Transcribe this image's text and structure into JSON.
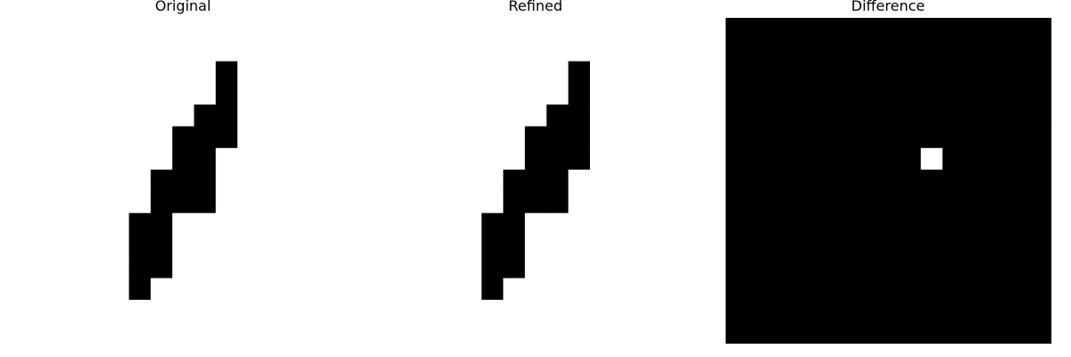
{
  "chart_data": {
    "type": "heatmap",
    "colormap": "gray",
    "rows": 15,
    "cols": 15,
    "value_range": [
      0,
      1
    ],
    "axes_visible": false,
    "panels": [
      {
        "title": "Original",
        "grid": [
          [
            1,
            1,
            1,
            1,
            1,
            1,
            1,
            1,
            1,
            1,
            1,
            1,
            1,
            1,
            1
          ],
          [
            1,
            1,
            1,
            1,
            1,
            1,
            1,
            1,
            1,
            1,
            1,
            1,
            1,
            1,
            1
          ],
          [
            1,
            1,
            1,
            1,
            1,
            1,
            1,
            1,
            1,
            0,
            1,
            1,
            1,
            1,
            1
          ],
          [
            1,
            1,
            1,
            1,
            1,
            1,
            1,
            1,
            1,
            0,
            1,
            1,
            1,
            1,
            1
          ],
          [
            1,
            1,
            1,
            1,
            1,
            1,
            1,
            1,
            0,
            0,
            1,
            1,
            1,
            1,
            1
          ],
          [
            1,
            1,
            1,
            1,
            1,
            1,
            1,
            0,
            0,
            0,
            1,
            1,
            1,
            1,
            1
          ],
          [
            1,
            1,
            1,
            1,
            1,
            1,
            1,
            0,
            0,
            1,
            1,
            1,
            1,
            1,
            1
          ],
          [
            1,
            1,
            1,
            1,
            1,
            1,
            0,
            0,
            0,
            1,
            1,
            1,
            1,
            1,
            1
          ],
          [
            1,
            1,
            1,
            1,
            1,
            1,
            0,
            0,
            0,
            1,
            1,
            1,
            1,
            1,
            1
          ],
          [
            1,
            1,
            1,
            1,
            1,
            0,
            0,
            1,
            1,
            1,
            1,
            1,
            1,
            1,
            1
          ],
          [
            1,
            1,
            1,
            1,
            1,
            0,
            0,
            1,
            1,
            1,
            1,
            1,
            1,
            1,
            1
          ],
          [
            1,
            1,
            1,
            1,
            1,
            0,
            0,
            1,
            1,
            1,
            1,
            1,
            1,
            1,
            1
          ],
          [
            1,
            1,
            1,
            1,
            1,
            0,
            1,
            1,
            1,
            1,
            1,
            1,
            1,
            1,
            1
          ],
          [
            1,
            1,
            1,
            1,
            1,
            1,
            1,
            1,
            1,
            1,
            1,
            1,
            1,
            1,
            1
          ],
          [
            1,
            1,
            1,
            1,
            1,
            1,
            1,
            1,
            1,
            1,
            1,
            1,
            1,
            1,
            1
          ]
        ]
      },
      {
        "title": "Refined",
        "grid": [
          [
            1,
            1,
            1,
            1,
            1,
            1,
            1,
            1,
            1,
            1,
            1,
            1,
            1,
            1,
            1
          ],
          [
            1,
            1,
            1,
            1,
            1,
            1,
            1,
            1,
            1,
            1,
            1,
            1,
            1,
            1,
            1
          ],
          [
            1,
            1,
            1,
            1,
            1,
            1,
            1,
            1,
            1,
            0,
            1,
            1,
            1,
            1,
            1
          ],
          [
            1,
            1,
            1,
            1,
            1,
            1,
            1,
            1,
            1,
            0,
            1,
            1,
            1,
            1,
            1
          ],
          [
            1,
            1,
            1,
            1,
            1,
            1,
            1,
            1,
            0,
            0,
            1,
            1,
            1,
            1,
            1
          ],
          [
            1,
            1,
            1,
            1,
            1,
            1,
            1,
            0,
            0,
            0,
            1,
            1,
            1,
            1,
            1
          ],
          [
            1,
            1,
            1,
            1,
            1,
            1,
            1,
            0,
            0,
            0,
            1,
            1,
            1,
            1,
            1
          ],
          [
            1,
            1,
            1,
            1,
            1,
            1,
            0,
            0,
            0,
            1,
            1,
            1,
            1,
            1,
            1
          ],
          [
            1,
            1,
            1,
            1,
            1,
            1,
            0,
            0,
            0,
            1,
            1,
            1,
            1,
            1,
            1
          ],
          [
            1,
            1,
            1,
            1,
            1,
            0,
            0,
            1,
            1,
            1,
            1,
            1,
            1,
            1,
            1
          ],
          [
            1,
            1,
            1,
            1,
            1,
            0,
            0,
            1,
            1,
            1,
            1,
            1,
            1,
            1,
            1
          ],
          [
            1,
            1,
            1,
            1,
            1,
            0,
            0,
            1,
            1,
            1,
            1,
            1,
            1,
            1,
            1
          ],
          [
            1,
            1,
            1,
            1,
            1,
            0,
            1,
            1,
            1,
            1,
            1,
            1,
            1,
            1,
            1
          ],
          [
            1,
            1,
            1,
            1,
            1,
            1,
            1,
            1,
            1,
            1,
            1,
            1,
            1,
            1,
            1
          ],
          [
            1,
            1,
            1,
            1,
            1,
            1,
            1,
            1,
            1,
            1,
            1,
            1,
            1,
            1,
            1
          ]
        ]
      },
      {
        "title": "Difference",
        "grid": [
          [
            0,
            0,
            0,
            0,
            0,
            0,
            0,
            0,
            0,
            0,
            0,
            0,
            0,
            0,
            0
          ],
          [
            0,
            0,
            0,
            0,
            0,
            0,
            0,
            0,
            0,
            0,
            0,
            0,
            0,
            0,
            0
          ],
          [
            0,
            0,
            0,
            0,
            0,
            0,
            0,
            0,
            0,
            0,
            0,
            0,
            0,
            0,
            0
          ],
          [
            0,
            0,
            0,
            0,
            0,
            0,
            0,
            0,
            0,
            0,
            0,
            0,
            0,
            0,
            0
          ],
          [
            0,
            0,
            0,
            0,
            0,
            0,
            0,
            0,
            0,
            0,
            0,
            0,
            0,
            0,
            0
          ],
          [
            0,
            0,
            0,
            0,
            0,
            0,
            0,
            0,
            0,
            0,
            0,
            0,
            0,
            0,
            0
          ],
          [
            0,
            0,
            0,
            0,
            0,
            0,
            0,
            0,
            0,
            1,
            0,
            0,
            0,
            0,
            0
          ],
          [
            0,
            0,
            0,
            0,
            0,
            0,
            0,
            0,
            0,
            0,
            0,
            0,
            0,
            0,
            0
          ],
          [
            0,
            0,
            0,
            0,
            0,
            0,
            0,
            0,
            0,
            0,
            0,
            0,
            0,
            0,
            0
          ],
          [
            0,
            0,
            0,
            0,
            0,
            0,
            0,
            0,
            0,
            0,
            0,
            0,
            0,
            0,
            0
          ],
          [
            0,
            0,
            0,
            0,
            0,
            0,
            0,
            0,
            0,
            0,
            0,
            0,
            0,
            0,
            0
          ],
          [
            0,
            0,
            0,
            0,
            0,
            0,
            0,
            0,
            0,
            0,
            0,
            0,
            0,
            0,
            0
          ],
          [
            0,
            0,
            0,
            0,
            0,
            0,
            0,
            0,
            0,
            0,
            0,
            0,
            0,
            0,
            0
          ],
          [
            0,
            0,
            0,
            0,
            0,
            0,
            0,
            0,
            0,
            0,
            0,
            0,
            0,
            0,
            0
          ],
          [
            0,
            0,
            0,
            0,
            0,
            0,
            0,
            0,
            0,
            0,
            0,
            0,
            0,
            0,
            0
          ]
        ]
      }
    ]
  }
}
